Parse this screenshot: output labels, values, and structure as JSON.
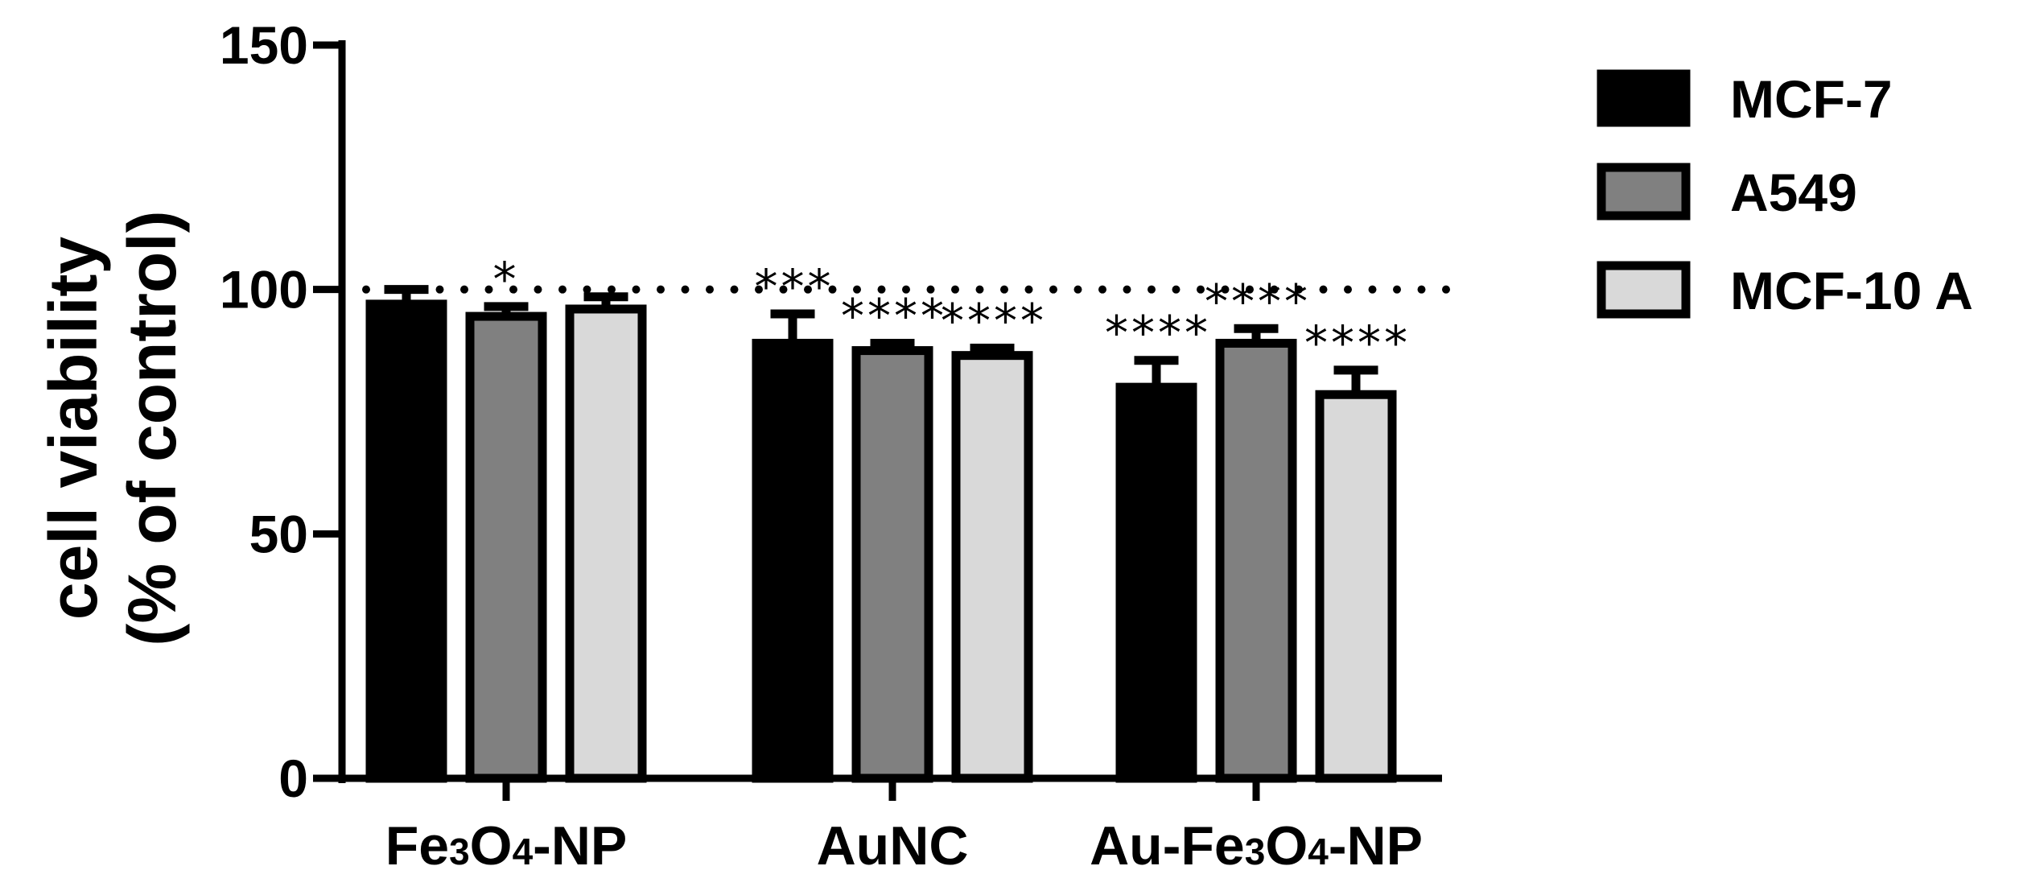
{
  "chart_data": {
    "type": "bar",
    "title": "",
    "xlabel": "",
    "ylabel_line1": "cell viability",
    "ylabel_line2": "(% of control)",
    "ylim": [
      0,
      150
    ],
    "yticks": [
      0,
      50,
      100,
      150
    ],
    "yticks_text": [
      "0",
      "50",
      "100",
      "150"
    ],
    "reference_line": 100,
    "categories": [
      {
        "base": "Fe",
        "sub1": "3",
        "mid": "O",
        "sub2": "4",
        "tail": "-NP",
        "text": "Fe3O4-NP"
      },
      {
        "base": "AuNC",
        "sub1": "",
        "mid": "",
        "sub2": "",
        "tail": "",
        "text": "AuNC"
      },
      {
        "base": "Au-Fe",
        "sub1": "3",
        "mid": "O",
        "sub2": "4",
        "tail": "-NP",
        "text": "Au-Fe3O4-NP"
      }
    ],
    "series": [
      {
        "name": "MCF-7",
        "color": "#000000",
        "values": [
          97,
          89,
          80
        ],
        "errors": [
          3,
          6,
          5.5
        ],
        "significance": [
          "",
          "***",
          "****"
        ]
      },
      {
        "name": "A549",
        "color": "#808080",
        "values": [
          94.5,
          87.5,
          89
        ],
        "errors": [
          2,
          1.5,
          3
        ],
        "significance": [
          "*",
          "****",
          "****"
        ]
      },
      {
        "name": "MCF-10 A",
        "color": "#d9d9d9",
        "values": [
          96,
          86.5,
          78.5
        ],
        "errors": [
          2.5,
          1.5,
          5
        ],
        "significance": [
          "",
          "****",
          "****"
        ]
      }
    ],
    "legend": {
      "position": "top-right"
    }
  }
}
